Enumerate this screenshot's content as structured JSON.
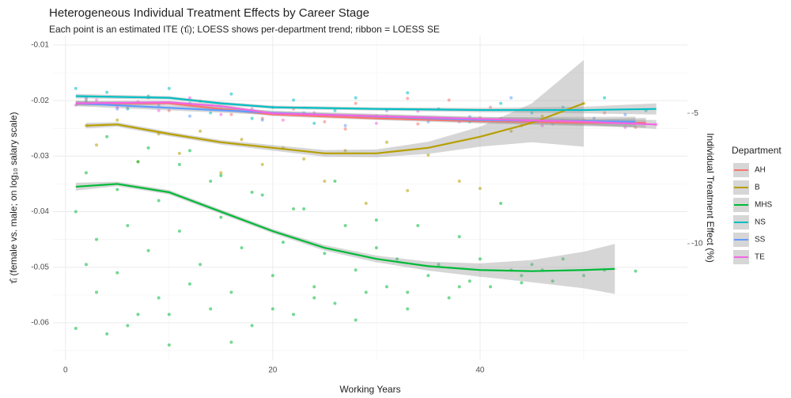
{
  "chart_data": {
    "type": "scatter",
    "title": "Heterogeneous Individual Treatment Effects by Career Stage",
    "subtitle": "Each point is an estimated ITE (τ̂ᵢ); LOESS shows per-department trend; ribbon = LOESS SE",
    "x_label": "Working Years",
    "y_label": "τ̂ᵢ (female vs. male; on log₁₀ salary scale)",
    "y2_label": "Individual Treatment Effect (%)",
    "legend_title": "Department",
    "legend_position": "right",
    "grid": true,
    "xlim": [
      -1.2,
      60
    ],
    "ylim": [
      -0.0667,
      -0.0083
    ],
    "xticks": [
      0,
      20,
      40
    ],
    "yticks": [
      -0.01,
      -0.02,
      -0.03,
      -0.04,
      -0.05,
      -0.06
    ],
    "xminor": [
      10,
      30,
      50
    ],
    "yminor": [
      -0.015,
      -0.025,
      -0.035,
      -0.045,
      -0.055,
      -0.065
    ],
    "y2ticks": [
      -5,
      -10
    ],
    "y2transform": "log10(1+v/100)",
    "series": [
      {
        "name": "AH",
        "color": "#F8766D",
        "x": [
          2,
          4,
          6,
          8,
          10,
          13,
          16,
          19,
          22,
          25,
          28,
          31,
          34,
          37,
          40,
          44,
          48,
          52,
          55,
          27,
          33,
          41
        ],
        "y": [
          -0.0198,
          -0.0205,
          -0.0212,
          -0.0195,
          -0.0218,
          -0.0201,
          -0.0225,
          -0.0232,
          -0.0215,
          -0.0238,
          -0.0205,
          -0.0228,
          -0.0242,
          -0.0199,
          -0.0231,
          -0.0245,
          -0.0236,
          -0.0222,
          -0.0248,
          -0.0251,
          -0.0196,
          -0.0212
        ],
        "loess": {
          "x": [
            1,
            10,
            20,
            30,
            40,
            50,
            56
          ],
          "y": [
            -0.0205,
            -0.0205,
            -0.0225,
            -0.0232,
            -0.0237,
            -0.024,
            -0.024
          ],
          "se": [
            0.0004,
            0.0003,
            0.0003,
            0.0003,
            0.0004,
            0.0006,
            0.0009
          ]
        }
      },
      {
        "name": "B",
        "color": "#B79F00",
        "x": [
          2,
          3,
          5,
          7,
          9,
          11,
          13,
          15,
          17,
          19,
          21,
          23,
          25,
          27,
          29,
          31,
          33,
          35,
          38,
          40,
          43,
          46,
          50
        ],
        "y": [
          -0.0245,
          -0.028,
          -0.0235,
          -0.031,
          -0.026,
          -0.0295,
          -0.0255,
          -0.033,
          -0.027,
          -0.0315,
          -0.0285,
          -0.0305,
          -0.0345,
          -0.029,
          -0.0385,
          -0.0275,
          -0.0362,
          -0.0298,
          -0.0345,
          -0.0358,
          -0.0255,
          -0.0228,
          -0.0205
        ],
        "loess": {
          "x": [
            2,
            5,
            10,
            15,
            20,
            25,
            30,
            35,
            40,
            45,
            50
          ],
          "y": [
            -0.0245,
            -0.0243,
            -0.026,
            -0.0275,
            -0.0285,
            -0.0295,
            -0.0295,
            -0.0285,
            -0.0265,
            -0.024,
            -0.0205
          ],
          "se": [
            0.0005,
            0.0004,
            0.0004,
            0.0004,
            0.0005,
            0.0006,
            0.0007,
            0.0011,
            0.0018,
            0.0035,
            0.0078
          ]
        }
      },
      {
        "name": "MHS",
        "color": "#00BA38",
        "x": [
          1,
          1,
          2,
          3,
          3,
          4,
          5,
          5,
          6,
          7,
          7,
          8,
          9,
          9,
          10,
          11,
          12,
          12,
          13,
          14,
          15,
          15,
          16,
          17,
          18,
          19,
          20,
          21,
          22,
          23,
          24,
          25,
          26,
          27,
          28,
          29,
          30,
          31,
          32,
          33,
          34,
          35,
          36,
          37,
          38,
          39,
          40,
          41,
          42,
          43,
          44,
          45,
          46,
          47,
          48,
          50,
          52,
          55,
          4,
          8,
          11,
          14,
          18,
          22,
          26,
          30,
          2,
          6,
          10,
          16,
          20,
          24,
          28,
          33,
          38,
          44
        ],
        "y": [
          -0.061,
          -0.04,
          -0.033,
          -0.0545,
          -0.045,
          -0.062,
          -0.036,
          -0.051,
          -0.0425,
          -0.0585,
          -0.031,
          -0.047,
          -0.0555,
          -0.038,
          -0.064,
          -0.0435,
          -0.053,
          -0.029,
          -0.0495,
          -0.0575,
          -0.041,
          -0.0335,
          -0.0545,
          -0.0465,
          -0.0605,
          -0.037,
          -0.0515,
          -0.0455,
          -0.0585,
          -0.0395,
          -0.0535,
          -0.0475,
          -0.0565,
          -0.0425,
          -0.0505,
          -0.0545,
          -0.0465,
          -0.0535,
          -0.0485,
          -0.0575,
          -0.0425,
          -0.0515,
          -0.0495,
          -0.0555,
          -0.0445,
          -0.0525,
          -0.0485,
          -0.0535,
          -0.0385,
          -0.0505,
          -0.0515,
          -0.0495,
          -0.0505,
          -0.0525,
          -0.0485,
          -0.0515,
          -0.0505,
          -0.0507,
          -0.0265,
          -0.0285,
          -0.0315,
          -0.0345,
          -0.0365,
          -0.0395,
          -0.0345,
          -0.0415,
          -0.0495,
          -0.0605,
          -0.0585,
          -0.0635,
          -0.0575,
          -0.0555,
          -0.0595,
          -0.0545,
          -0.0535,
          -0.0528
        ],
        "loess": {
          "x": [
            1,
            5,
            10,
            15,
            20,
            25,
            30,
            35,
            40,
            45,
            50,
            53
          ],
          "y": [
            -0.0355,
            -0.035,
            -0.0365,
            -0.04,
            -0.0435,
            -0.0465,
            -0.0485,
            -0.0498,
            -0.0505,
            -0.0507,
            -0.0505,
            -0.0503
          ],
          "se": [
            0.0007,
            0.0004,
            0.0004,
            0.0004,
            0.0004,
            0.0005,
            0.0006,
            0.0008,
            0.0012,
            0.002,
            0.0033,
            0.0045
          ]
        }
      },
      {
        "name": "NS",
        "color": "#00BFC4",
        "x": [
          1,
          2,
          4,
          6,
          8,
          10,
          12,
          14,
          16,
          18,
          20,
          22,
          24,
          26,
          28,
          30,
          33,
          36,
          39,
          42,
          45,
          48,
          52,
          56
        ],
        "y": [
          -0.0178,
          -0.0202,
          -0.0185,
          -0.0215,
          -0.0192,
          -0.0178,
          -0.0205,
          -0.0222,
          -0.0188,
          -0.0232,
          -0.0212,
          -0.0199,
          -0.0241,
          -0.0218,
          -0.0195,
          -0.0228,
          -0.0186,
          -0.0215,
          -0.0238,
          -0.0205,
          -0.0222,
          -0.0212,
          -0.0195,
          -0.0218
        ],
        "loess": {
          "x": [
            1,
            10,
            15,
            20,
            30,
            40,
            50,
            57
          ],
          "y": [
            -0.0192,
            -0.0195,
            -0.0205,
            -0.0212,
            -0.0215,
            -0.0217,
            -0.0217,
            -0.0215
          ],
          "se": [
            0.0004,
            0.0003,
            0.0003,
            0.0003,
            0.0003,
            0.0004,
            0.0006,
            0.001
          ]
        }
      },
      {
        "name": "SS",
        "color": "#619CFF",
        "x": [
          2,
          5,
          9,
          12,
          15,
          19,
          23,
          27,
          31,
          35,
          39,
          43,
          47,
          51,
          54
        ],
        "y": [
          -0.0195,
          -0.0215,
          -0.0208,
          -0.0228,
          -0.0215,
          -0.0235,
          -0.0222,
          -0.0245,
          -0.0218,
          -0.0238,
          -0.0229,
          -0.0195,
          -0.0242,
          -0.0232,
          -0.0225
        ],
        "loess": {
          "x": [
            1,
            20,
            40,
            55
          ],
          "y": [
            -0.0205,
            -0.0222,
            -0.0235,
            -0.0238
          ],
          "se": [
            0.0005,
            0.0004,
            0.0005,
            0.0009
          ]
        }
      },
      {
        "name": "TE",
        "color": "#F564E3",
        "x": [
          1,
          3,
          5,
          7,
          9,
          12,
          15,
          18,
          21,
          24,
          27,
          30,
          34,
          38,
          42,
          46,
          50,
          54,
          57
        ],
        "y": [
          -0.0208,
          -0.0199,
          -0.0212,
          -0.0202,
          -0.0218,
          -0.0195,
          -0.0225,
          -0.0215,
          -0.0235,
          -0.0222,
          -0.0228,
          -0.0241,
          -0.0219,
          -0.0238,
          -0.0232,
          -0.0245,
          -0.0235,
          -0.0248,
          -0.0243
        ],
        "loess": {
          "x": [
            1,
            10,
            15,
            20,
            30,
            40,
            50,
            57
          ],
          "y": [
            -0.0205,
            -0.0203,
            -0.021,
            -0.0223,
            -0.0228,
            -0.0233,
            -0.0238,
            -0.0243
          ],
          "se": [
            0.0004,
            0.0003,
            0.0003,
            0.0003,
            0.0003,
            0.0004,
            0.0005,
            0.0008
          ]
        }
      }
    ]
  }
}
